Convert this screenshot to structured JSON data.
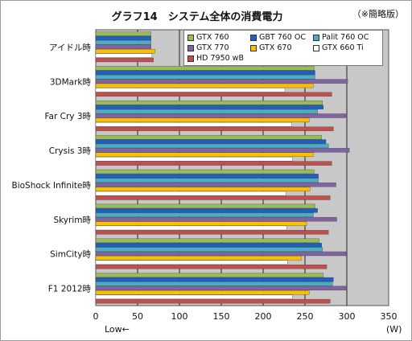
{
  "title": "グラフ14　システム全体の消費電力",
  "note": "（※簡略版）",
  "low_label": "Low←",
  "unit_label": "(W)",
  "chart_data": {
    "type": "bar",
    "orientation": "horizontal",
    "categories": [
      "アイドル時",
      "3DMark時",
      "Far Cry 3時",
      "Crysis 3時",
      "BioShock Infinite時",
      "Skyrim時",
      "SimCity時",
      "F1 2012時"
    ],
    "xlim": [
      0,
      350
    ],
    "xticks": [
      0,
      50,
      100,
      150,
      200,
      250,
      300,
      350
    ],
    "grid": true,
    "legend_position": "top-right",
    "series": [
      {
        "name": "GTX 760",
        "color": "#9bbb59",
        "values": [
          66,
          261,
          271,
          270,
          261,
          262,
          267,
          272
        ]
      },
      {
        "name": "GBT 760 OC",
        "color": "#1f5fbf",
        "values": [
          66,
          262,
          272,
          275,
          266,
          265,
          270,
          284
        ]
      },
      {
        "name": "Palit 760 OC",
        "color": "#4bacc6",
        "values": [
          66,
          262,
          265,
          278,
          266,
          260,
          271,
          283
        ]
      },
      {
        "name": "GTX 770",
        "color": "#8064a2",
        "values": [
          66,
          301,
          299,
          303,
          287,
          288,
          299,
          299
        ]
      },
      {
        "name": "GTX 670",
        "color": "#f9c000",
        "values": [
          71,
          260,
          255,
          260,
          256,
          252,
          246,
          255
        ]
      },
      {
        "name": "GTX 660 Ti",
        "color": "#ffffff",
        "values": [
          67,
          226,
          234,
          235,
          227,
          228,
          229,
          235
        ]
      },
      {
        "name": "HD 7950 wB",
        "color": "#c0504d",
        "values": [
          69,
          282,
          284,
          282,
          280,
          278,
          276,
          280
        ]
      }
    ]
  }
}
